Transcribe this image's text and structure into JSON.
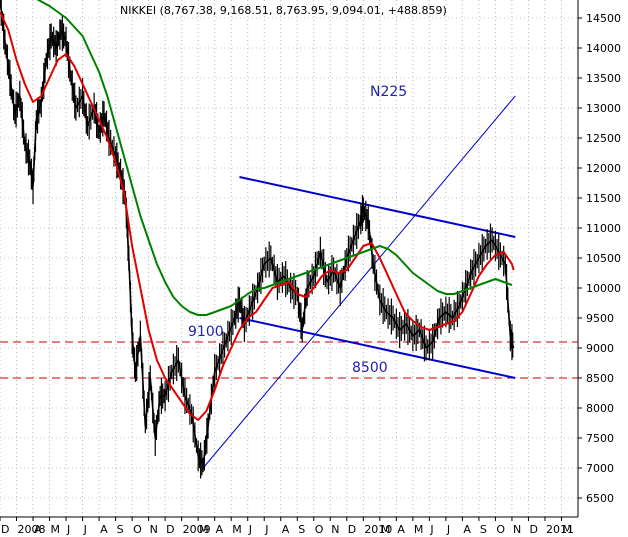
{
  "chart_data": {
    "type": "line",
    "title": "NIKKEI (8,767.38, 9,168.51, 8,763.95, 9,094.01, +488.859)",
    "label": "N225",
    "xlabel": "",
    "ylabel": "",
    "ylim": [
      6200,
      14800
    ],
    "x_tick_labels": [
      {
        "label": "D",
        "m": 0
      },
      {
        "label": "2008",
        "m": 1
      },
      {
        "label": "A",
        "m": 2
      },
      {
        "label": "M",
        "m": 3
      },
      {
        "label": "J",
        "m": 4
      },
      {
        "label": "J",
        "m": 5
      },
      {
        "label": "A",
        "m": 6
      },
      {
        "label": "S",
        "m": 7
      },
      {
        "label": "O",
        "m": 8
      },
      {
        "label": "N",
        "m": 9
      },
      {
        "label": "D",
        "m": 10
      },
      {
        "label": "2009",
        "m": 11
      },
      {
        "label": "M",
        "m": 12
      },
      {
        "label": "A",
        "m": 13
      },
      {
        "label": "M",
        "m": 14
      },
      {
        "label": "J",
        "m": 15
      },
      {
        "label": "J",
        "m": 16
      },
      {
        "label": "A",
        "m": 17
      },
      {
        "label": "S",
        "m": 18
      },
      {
        "label": "O",
        "m": 19
      },
      {
        "label": "N",
        "m": 20
      },
      {
        "label": "D",
        "m": 21
      },
      {
        "label": "2010",
        "m": 22
      },
      {
        "label": "M",
        "m": 23
      },
      {
        "label": "A",
        "m": 24
      },
      {
        "label": "M",
        "m": 25
      },
      {
        "label": "J",
        "m": 26
      },
      {
        "label": "J",
        "m": 27
      },
      {
        "label": "A",
        "m": 28
      },
      {
        "label": "S",
        "m": 29
      },
      {
        "label": "O",
        "m": 30
      },
      {
        "label": "N",
        "m": 31
      },
      {
        "label": "D",
        "m": 32
      },
      {
        "label": "2011",
        "m": 33
      },
      {
        "label": "M",
        "m": 34
      }
    ],
    "y_ticks": [
      6500,
      7000,
      7500,
      8000,
      8500,
      9000,
      9500,
      10000,
      10500,
      11000,
      11500,
      12000,
      12500,
      13000,
      13500,
      14000,
      14500
    ],
    "grid": true,
    "series": [
      {
        "color": "#000000",
        "style": "bars",
        "points": [
          [
            0,
            14800
          ],
          [
            0.3,
            14100
          ],
          [
            0.6,
            13500
          ],
          [
            0.9,
            12900
          ],
          [
            1.2,
            13200
          ],
          [
            1.5,
            12400
          ],
          [
            1.8,
            12100
          ],
          [
            2.0,
            11700
          ],
          [
            2.2,
            12800
          ],
          [
            2.5,
            13100
          ],
          [
            2.8,
            13800
          ],
          [
            3.1,
            14200
          ],
          [
            3.4,
            14000
          ],
          [
            3.7,
            14300
          ],
          [
            4.0,
            14100
          ],
          [
            4.3,
            13500
          ],
          [
            4.6,
            13000
          ],
          [
            5.0,
            13200
          ],
          [
            5.3,
            12700
          ],
          [
            5.7,
            13000
          ],
          [
            6.0,
            12600
          ],
          [
            6.3,
            12900
          ],
          [
            6.6,
            12500
          ],
          [
            7.0,
            12200
          ],
          [
            7.3,
            11900
          ],
          [
            7.6,
            11500
          ],
          [
            7.8,
            10500
          ],
          [
            8.0,
            9200
          ],
          [
            8.2,
            8600
          ],
          [
            8.5,
            9200
          ],
          [
            8.8,
            7700
          ],
          [
            9.1,
            8500
          ],
          [
            9.4,
            7500
          ],
          [
            9.7,
            8200
          ],
          [
            10.0,
            8200
          ],
          [
            10.4,
            8600
          ],
          [
            10.8,
            8800
          ],
          [
            11.2,
            8200
          ],
          [
            11.6,
            7900
          ],
          [
            12.0,
            7200
          ],
          [
            12.3,
            7050
          ],
          [
            12.6,
            7700
          ],
          [
            13.0,
            8600
          ],
          [
            13.4,
            8900
          ],
          [
            13.8,
            9200
          ],
          [
            14.2,
            9500
          ],
          [
            14.5,
            9800
          ],
          [
            14.8,
            9400
          ],
          [
            15.2,
            9700
          ],
          [
            15.6,
            10000
          ],
          [
            16.0,
            10400
          ],
          [
            16.4,
            10500
          ],
          [
            16.8,
            10100
          ],
          [
            17.2,
            10200
          ],
          [
            17.6,
            10000
          ],
          [
            18.0,
            9900
          ],
          [
            18.3,
            9300
          ],
          [
            18.6,
            10000
          ],
          [
            19.0,
            10200
          ],
          [
            19.4,
            10600
          ],
          [
            19.8,
            10100
          ],
          [
            20.2,
            10300
          ],
          [
            20.6,
            10000
          ],
          [
            21.0,
            10500
          ],
          [
            21.4,
            10800
          ],
          [
            21.8,
            11100
          ],
          [
            22.0,
            11300
          ],
          [
            22.3,
            11100
          ],
          [
            22.6,
            10400
          ],
          [
            23.0,
            9800
          ],
          [
            23.4,
            9600
          ],
          [
            23.8,
            9500
          ],
          [
            24.2,
            9300
          ],
          [
            24.6,
            9400
          ],
          [
            25.0,
            9200
          ],
          [
            25.4,
            9300
          ],
          [
            25.8,
            9000
          ],
          [
            26.2,
            9100
          ],
          [
            26.6,
            9500
          ],
          [
            27.0,
            9600
          ],
          [
            27.4,
            9500
          ],
          [
            27.8,
            9700
          ],
          [
            28.2,
            10000
          ],
          [
            28.6,
            10300
          ],
          [
            29.0,
            10500
          ],
          [
            29.4,
            10700
          ],
          [
            29.8,
            10800
          ],
          [
            30.2,
            10600
          ],
          [
            30.6,
            10400
          ],
          [
            30.9,
            9200
          ],
          [
            31.1,
            9000
          ]
        ]
      },
      {
        "color": "#e00000",
        "style": "line",
        "points": [
          [
            0,
            14600
          ],
          [
            0.5,
            14300
          ],
          [
            1.0,
            13800
          ],
          [
            1.5,
            13400
          ],
          [
            2.0,
            13100
          ],
          [
            2.5,
            13200
          ],
          [
            3.0,
            13500
          ],
          [
            3.5,
            13800
          ],
          [
            4.0,
            13900
          ],
          [
            4.5,
            13700
          ],
          [
            5.0,
            13400
          ],
          [
            5.5,
            13100
          ],
          [
            6.0,
            12800
          ],
          [
            6.5,
            12500
          ],
          [
            7.0,
            12100
          ],
          [
            7.5,
            11600
          ],
          [
            8.0,
            10700
          ],
          [
            8.5,
            10000
          ],
          [
            9.0,
            9300
          ],
          [
            9.5,
            8800
          ],
          [
            10.0,
            8500
          ],
          [
            10.5,
            8300
          ],
          [
            11.0,
            8100
          ],
          [
            11.5,
            7900
          ],
          [
            12.0,
            7800
          ],
          [
            12.5,
            7950
          ],
          [
            13.0,
            8300
          ],
          [
            13.5,
            8700
          ],
          [
            14.0,
            9000
          ],
          [
            14.5,
            9300
          ],
          [
            15.0,
            9500
          ],
          [
            15.5,
            9600
          ],
          [
            16.0,
            9800
          ],
          [
            16.5,
            10000
          ],
          [
            17.0,
            10050
          ],
          [
            17.5,
            10100
          ],
          [
            18.0,
            9900
          ],
          [
            18.5,
            9850
          ],
          [
            19.0,
            10000
          ],
          [
            19.5,
            10200
          ],
          [
            20.0,
            10300
          ],
          [
            20.5,
            10250
          ],
          [
            21.0,
            10300
          ],
          [
            21.5,
            10500
          ],
          [
            22.0,
            10700
          ],
          [
            22.5,
            10750
          ],
          [
            23.0,
            10500
          ],
          [
            23.5,
            10200
          ],
          [
            24.0,
            9900
          ],
          [
            24.5,
            9600
          ],
          [
            25.0,
            9450
          ],
          [
            25.5,
            9350
          ],
          [
            26.0,
            9300
          ],
          [
            26.5,
            9350
          ],
          [
            27.0,
            9400
          ],
          [
            27.5,
            9450
          ],
          [
            28.0,
            9600
          ],
          [
            28.5,
            9900
          ],
          [
            29.0,
            10200
          ],
          [
            29.5,
            10400
          ],
          [
            30.0,
            10550
          ],
          [
            30.5,
            10600
          ],
          [
            31.0,
            10400
          ],
          [
            31.1,
            10300
          ]
        ]
      },
      {
        "color": "#008000",
        "style": "line",
        "points": [
          [
            0,
            15000
          ],
          [
            1,
            14950
          ],
          [
            2,
            14850
          ],
          [
            3,
            14700
          ],
          [
            4,
            14500
          ],
          [
            5,
            14200
          ],
          [
            5.5,
            13900
          ],
          [
            6,
            13600
          ],
          [
            6.5,
            13200
          ],
          [
            7,
            12700
          ],
          [
            7.5,
            12200
          ],
          [
            8,
            11700
          ],
          [
            8.5,
            11200
          ],
          [
            9,
            10800
          ],
          [
            9.5,
            10400
          ],
          [
            10,
            10100
          ],
          [
            10.5,
            9850
          ],
          [
            11,
            9700
          ],
          [
            11.5,
            9600
          ],
          [
            12,
            9550
          ],
          [
            12.5,
            9550
          ],
          [
            13,
            9600
          ],
          [
            13.5,
            9650
          ],
          [
            14,
            9700
          ],
          [
            14.5,
            9800
          ],
          [
            15,
            9900
          ],
          [
            15.5,
            9980
          ],
          [
            16,
            10000
          ],
          [
            16.5,
            10050
          ],
          [
            17,
            10100
          ],
          [
            17.5,
            10150
          ],
          [
            18,
            10200
          ],
          [
            18.5,
            10250
          ],
          [
            19,
            10300
          ],
          [
            19.5,
            10350
          ],
          [
            20,
            10400
          ],
          [
            20.5,
            10450
          ],
          [
            21,
            10500
          ],
          [
            21.5,
            10550
          ],
          [
            22,
            10600
          ],
          [
            22.5,
            10650
          ],
          [
            23,
            10700
          ],
          [
            23.5,
            10650
          ],
          [
            24,
            10550
          ],
          [
            24.5,
            10400
          ],
          [
            25,
            10250
          ],
          [
            25.5,
            10150
          ],
          [
            26,
            10050
          ],
          [
            26.5,
            9950
          ],
          [
            27,
            9900
          ],
          [
            27.5,
            9900
          ],
          [
            28,
            9950
          ],
          [
            28.5,
            10000
          ],
          [
            29,
            10050
          ],
          [
            29.5,
            10100
          ],
          [
            30,
            10150
          ],
          [
            30.5,
            10100
          ],
          [
            31,
            10050
          ]
        ]
      }
    ],
    "trendlines": [
      {
        "color": "#0000cc",
        "width": 2,
        "from": [
          14.5,
          11850
        ],
        "to": [
          31.2,
          10850
        ]
      },
      {
        "color": "#0000cc",
        "width": 2,
        "from": [
          14.5,
          9500
        ],
        "to": [
          31.2,
          8500
        ]
      },
      {
        "color": "#0000cc",
        "width": 1,
        "from": [
          12.3,
          7000
        ],
        "to": [
          31.2,
          13200
        ]
      }
    ],
    "hlines": [
      {
        "value": 9100,
        "label": "9100",
        "color": "#cc0000",
        "dash": true
      },
      {
        "value": 8500,
        "label": "8500",
        "color": "#cc0000",
        "dash": true
      }
    ]
  }
}
